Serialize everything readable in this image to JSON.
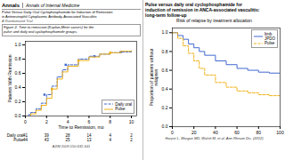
{
  "chart_data": [
    {
      "type": "step",
      "title": "Figure 2. Time to remission (Kaplan-Meier curves) for the\npulse and daily oral cyclophosphamide groups.",
      "annotations": [
        "Annals",
        "Annals of Internal Medicine",
        "Pulse Versus Daily Oral Cyclophosphamide for Induction of Remission",
        "in Antineutrophil Cytoplasmic Antibody-Associated Vasculitis",
        "A Randomized Trial",
        "AJIM 2009;150:632-641"
      ],
      "xlabel": "Time to Remission, mo",
      "ylabel": "Patients With Remission",
      "series": [
        {
          "name": "Daily oral",
          "line_style": "dashed",
          "marker": "square",
          "x": [
            0,
            0.3,
            0.5,
            1.0,
            1.5,
            2.0,
            2.5,
            3.0,
            3.5,
            4.0,
            5.0,
            6.0,
            7.0,
            8.0,
            9.0,
            10.0
          ],
          "values": [
            0,
            0.02,
            0.05,
            0.1,
            0.18,
            0.3,
            0.42,
            0.55,
            0.65,
            0.72,
            0.8,
            0.84,
            0.87,
            0.89,
            0.9,
            0.91
          ],
          "censored": {
            "x": [
              1.8,
              3.8,
              6.5,
              9.0
            ],
            "values": [
              0.3,
              0.72,
              0.84,
              0.9
            ]
          }
        },
        {
          "name": "Pulse",
          "line_style": "solid",
          "marker": "square",
          "x": [
            0,
            0.5,
            1.0,
            1.5,
            2.0,
            2.5,
            3.0,
            3.5,
            4.0,
            5.0,
            6.0,
            7.0,
            8.0,
            9.0,
            10.0
          ],
          "values": [
            0,
            0.03,
            0.08,
            0.15,
            0.25,
            0.38,
            0.52,
            0.62,
            0.7,
            0.78,
            0.83,
            0.87,
            0.89,
            0.91,
            0.92
          ],
          "censored": {
            "x": [
              2.5,
              5.0,
              8.0
            ],
            "values": [
              0.38,
              0.78,
              0.89
            ]
          }
        }
      ],
      "xlim": [
        0,
        10.5
      ],
      "xticks": [
        0,
        2,
        4,
        6,
        8,
        10
      ],
      "ylim": [
        0,
        1.05
      ],
      "yticks": [
        {
          "value": 0,
          "label": "0.0"
        },
        0.2,
        0.4,
        0.6,
        0.8,
        {
          "value": 1,
          "label": "1.0"
        }
      ],
      "grid": false,
      "legend": "lower right",
      "at_risk": {
        "x": [
          0.0,
          2.0,
          4.0,
          6.0,
          8.0,
          10.0
        ],
        "rows": [
          {
            "name": "Daily oral",
            "values": [
              41,
              39,
              28,
              14,
              4,
              2
            ]
          },
          {
            "name": "Pulse",
            "values": [
              44,
              43,
              25,
              13,
              4,
              2
            ]
          }
        ]
      }
    },
    {
      "type": "step",
      "title": "Risk of relapse by treatment allocation",
      "annotations": [
        "Pulse versus daily oral cyclophosphamide for",
        "induction of remission in ANCA-associated vasculitis:",
        "long-term follow-up",
        "Harper L, Morgan MD, Walsh M, et al. Ann Rheum Dis. (2012)"
      ],
      "ylabel": "Proportion of patients without\nrelapses",
      "x": [
        0,
        5,
        10,
        15,
        20,
        25,
        30,
        40,
        50,
        60,
        70,
        80,
        90,
        100
      ],
      "series": [
        {
          "name": "limb\nJPDO",
          "line_style": "solid",
          "values": [
            1.0,
            0.97,
            0.93,
            0.88,
            0.84,
            0.8,
            0.76,
            0.7,
            0.66,
            0.62,
            0.6,
            0.58,
            0.57,
            0.56
          ]
        },
        {
          "name": "Pulse",
          "line_style": "dashed",
          "values": [
            1.0,
            0.94,
            0.86,
            0.78,
            0.7,
            0.62,
            0.55,
            0.47,
            0.42,
            0.38,
            0.36,
            0.34,
            0.33,
            0.32
          ]
        }
      ],
      "xlim": [
        0,
        100
      ],
      "xticks": [
        0,
        20,
        40,
        60,
        80,
        100
      ],
      "ylim": [
        0.0,
        1.05
      ],
      "yticks": [
        {
          "value": 0,
          "label": "0.0"
        },
        0.2,
        0.4,
        0.6,
        0.8,
        {
          "value": 1,
          "label": "1.0"
        }
      ],
      "grid": false,
      "legend": "upper right"
    }
  ]
}
